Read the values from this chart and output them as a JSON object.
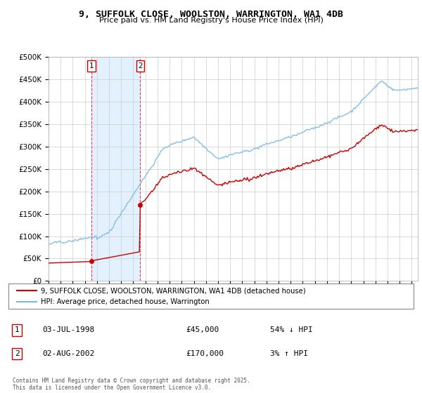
{
  "title": "9, SUFFOLK CLOSE, WOOLSTON, WARRINGTON, WA1 4DB",
  "subtitle": "Price paid vs. HM Land Registry's House Price Index (HPI)",
  "legend_line1": "9, SUFFOLK CLOSE, WOOLSTON, WARRINGTON, WA1 4DB (detached house)",
  "legend_line2": "HPI: Average price, detached house, Warrington",
  "sale1_label": "1",
  "sale1_date": "03-JUL-1998",
  "sale1_price": "£45,000",
  "sale1_hpi": "54% ↓ HPI",
  "sale2_label": "2",
  "sale2_date": "02-AUG-2002",
  "sale2_price": "£170,000",
  "sale2_hpi": "3% ↑ HPI",
  "footer": "Contains HM Land Registry data © Crown copyright and database right 2025.\nThis data is licensed under the Open Government Licence v3.0.",
  "hpi_color": "#7ab8e8",
  "price_color": "#cc0000",
  "shade_color": "#ddeeff",
  "sale1_x": 1998.54,
  "sale2_x": 2002.58,
  "sale1_y": 45000,
  "sale2_y": 170000,
  "ylim": [
    0,
    500000
  ],
  "xlim_start": 1995.0,
  "xlim_end": 2025.5
}
